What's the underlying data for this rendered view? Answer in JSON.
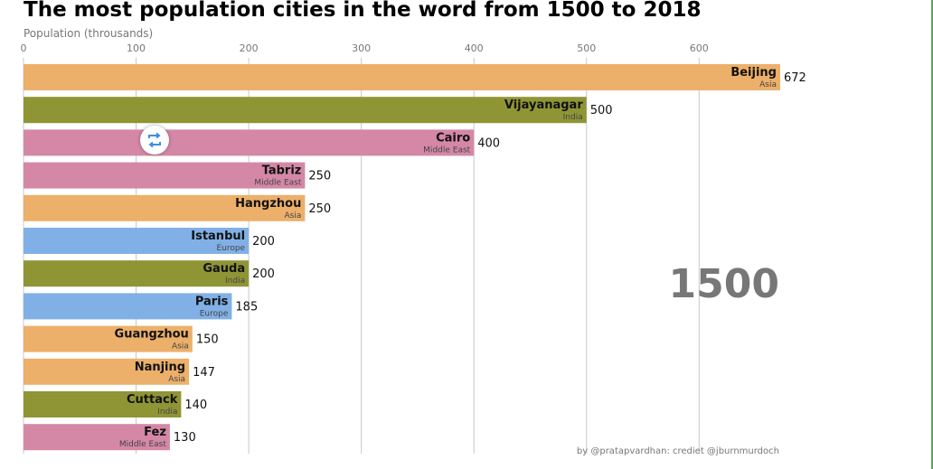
{
  "chart_data": {
    "type": "bar",
    "orientation": "horizontal",
    "title": "The most population cities in the word from 1500 to 2018",
    "xlabel": "Population (throusands)",
    "xlim": [
      0,
      672
    ],
    "xticks": [
      0,
      100,
      200,
      300,
      400,
      500,
      600
    ],
    "grid": true,
    "year": "1500",
    "credit": "by @pratapvardhan: crediet @jburnmurdoch",
    "region_colors": {
      "Asia": "#ecb06a",
      "India": "#8f9535",
      "Middle East": "#d488a6",
      "Europe": "#81b0e6"
    },
    "bars": [
      {
        "city": "Beijing",
        "region": "Asia",
        "value": 672
      },
      {
        "city": "Vijayanagar",
        "region": "India",
        "value": 500
      },
      {
        "city": "Cairo",
        "region": "Middle East",
        "value": 400
      },
      {
        "city": "Tabriz",
        "region": "Middle East",
        "value": 250
      },
      {
        "city": "Hangzhou",
        "region": "Asia",
        "value": 250
      },
      {
        "city": "Istanbul",
        "region": "Europe",
        "value": 200
      },
      {
        "city": "Gauda",
        "region": "India",
        "value": 200
      },
      {
        "city": "Paris",
        "region": "Europe",
        "value": 185
      },
      {
        "city": "Guangzhou",
        "region": "Asia",
        "value": 150
      },
      {
        "city": "Nanjing",
        "region": "Asia",
        "value": 147
      },
      {
        "city": "Cuttack",
        "region": "India",
        "value": 140
      },
      {
        "city": "Fez",
        "region": "Middle East",
        "value": 130
      }
    ]
  }
}
